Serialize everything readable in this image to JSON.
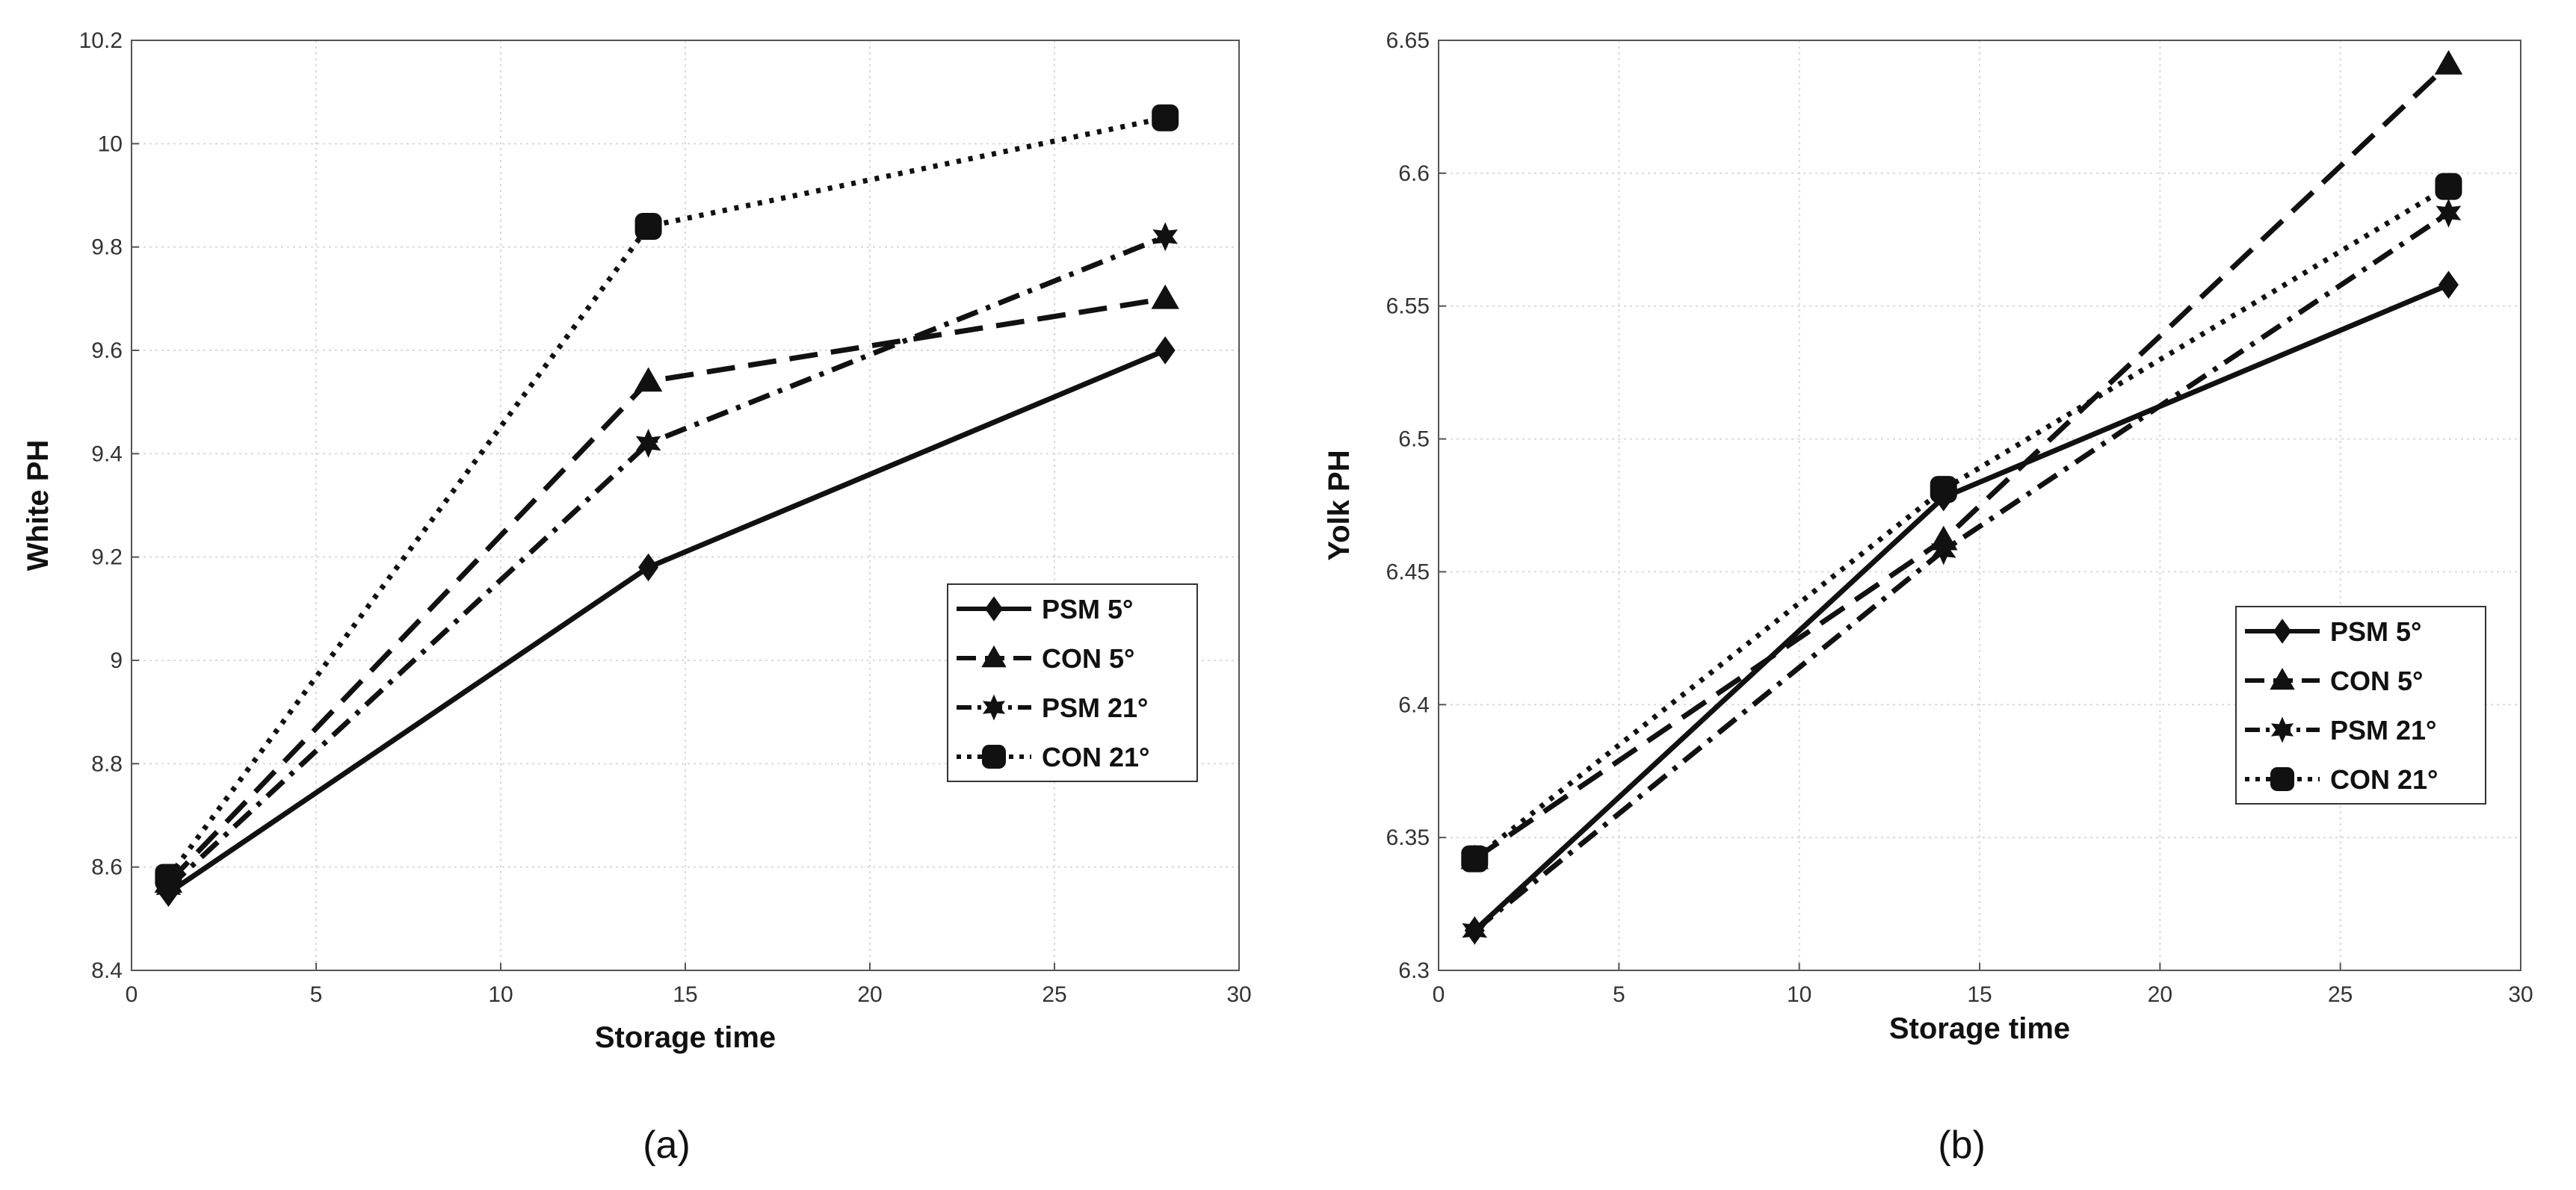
{
  "chart_data": [
    {
      "id": "a",
      "type": "line",
      "title": "",
      "caption": "(a)",
      "xlabel": "Storage time",
      "ylabel": "White PH",
      "xlim": [
        0,
        30
      ],
      "ylim": [
        8.4,
        10.2
      ],
      "xticks": [
        "0",
        "5",
        "10",
        "15",
        "20",
        "25",
        "30"
      ],
      "yticks": [
        "8.4",
        "8.6",
        "8.8",
        "9",
        "9.2",
        "9.4",
        "9.6",
        "9.8",
        "10",
        "10.2"
      ],
      "grid": true,
      "legend_position": "right-center",
      "x": [
        1,
        14,
        28
      ],
      "series": [
        {
          "name": "PSM 5°",
          "marker": "diamond",
          "dash": "solid",
          "values": [
            8.55,
            9.18,
            9.6
          ]
        },
        {
          "name": "CON 5°",
          "marker": "triangle",
          "dash": "dashed",
          "values": [
            8.57,
            9.54,
            9.7
          ]
        },
        {
          "name": "PSM 21°",
          "marker": "star",
          "dash": "dashdot",
          "values": [
            8.56,
            9.42,
            9.82
          ]
        },
        {
          "name": "CON 21°",
          "marker": "square",
          "dash": "dotted",
          "values": [
            8.58,
            9.84,
            10.05
          ]
        }
      ]
    },
    {
      "id": "b",
      "type": "line",
      "title": "",
      "caption": "(b)",
      "xlabel": "Storage time",
      "ylabel": "Yolk PH",
      "xlim": [
        0,
        30
      ],
      "ylim": [
        6.3,
        6.65
      ],
      "xticks": [
        "0",
        "5",
        "10",
        "15",
        "20",
        "25",
        "30"
      ],
      "yticks": [
        "6.3",
        "6.35",
        "6.4",
        "6.45",
        "6.5",
        "6.55",
        "6.6",
        "6.65"
      ],
      "grid": true,
      "legend_position": "right-center",
      "x": [
        1,
        14,
        28
      ],
      "series": [
        {
          "name": "PSM 5°",
          "marker": "diamond",
          "dash": "solid",
          "values": [
            6.315,
            6.478,
            6.558
          ]
        },
        {
          "name": "CON 5°",
          "marker": "triangle",
          "dash": "dashed",
          "values": [
            6.342,
            6.462,
            6.641
          ]
        },
        {
          "name": "PSM 21°",
          "marker": "star",
          "dash": "dashdot",
          "values": [
            6.315,
            6.458,
            6.585
          ]
        },
        {
          "name": "CON 21°",
          "marker": "square",
          "dash": "dotted",
          "values": [
            6.342,
            6.481,
            6.595
          ]
        }
      ]
    }
  ]
}
